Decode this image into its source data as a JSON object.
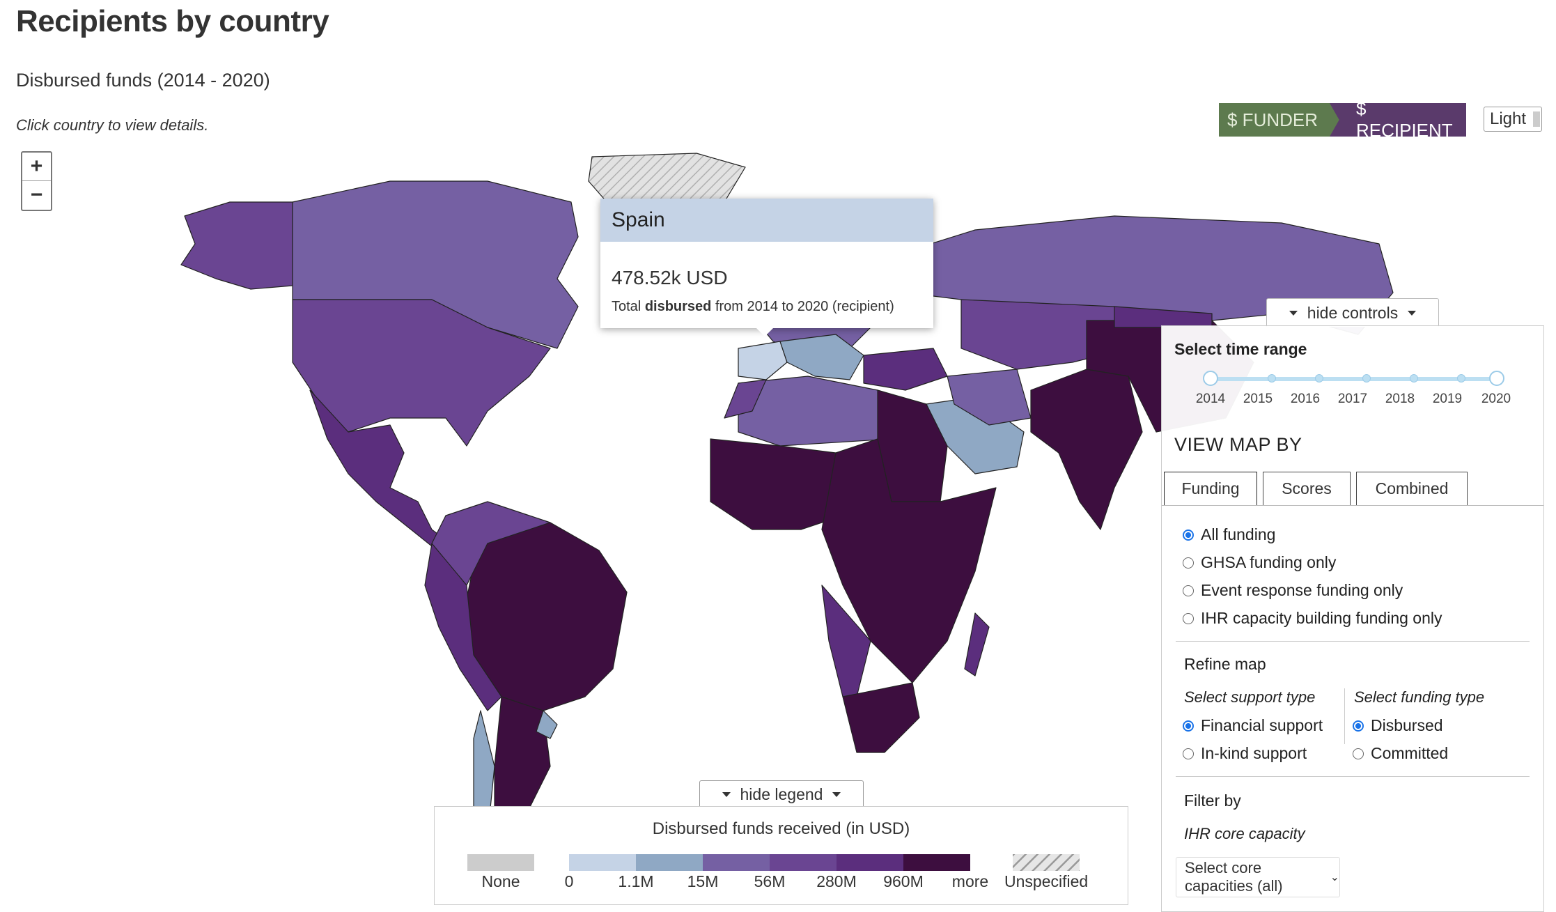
{
  "page": {
    "title": "Recipients by country",
    "subtitle": "Disbursed funds (2014 - 2020)",
    "hint": "Click country to view details."
  },
  "zoom": {
    "in_label": "+",
    "out_label": "−"
  },
  "mode_toggle": {
    "funder_label": "$ FUNDER",
    "recipient_label": "$ RECIPIENT",
    "active": "recipient"
  },
  "theme_toggle": {
    "label": "Light"
  },
  "tooltip": {
    "country": "Spain",
    "value": "478.52k USD",
    "desc_prefix": "Total ",
    "desc_bold": "disbursed",
    "desc_suffix": " from 2014 to 2020 (recipient)"
  },
  "controls": {
    "hide_label": "hide controls",
    "time_range_title": "Select time range",
    "years": [
      "2014",
      "2015",
      "2016",
      "2017",
      "2018",
      "2019",
      "2020"
    ],
    "selected_range": [
      "2014",
      "2020"
    ],
    "view_map_by_title": "VIEW MAP BY",
    "tabs": [
      "Funding",
      "Scores",
      "Combined"
    ],
    "active_tab": "Funding",
    "funding_options": [
      {
        "label": "All funding",
        "checked": true
      },
      {
        "label": "GHSA funding only",
        "checked": false
      },
      {
        "label": "Event response funding only",
        "checked": false
      },
      {
        "label": "IHR capacity building funding only",
        "checked": false
      }
    ],
    "refine_title": "Refine map",
    "support_type_title": "Select support type",
    "support_options": [
      {
        "label": "Financial support",
        "checked": true
      },
      {
        "label": "In-kind support",
        "checked": false
      }
    ],
    "funding_type_title": "Select funding type",
    "funding_type_options": [
      {
        "label": "Disbursed",
        "checked": true
      },
      {
        "label": "Committed",
        "checked": false
      }
    ],
    "filter_title": "Filter by",
    "ihr_title": "IHR core capacity",
    "core_select_value": "Select core capacities (all)"
  },
  "legend": {
    "hide_label": "hide legend",
    "title": "Disbursed funds received (in USD)",
    "none_label": "None",
    "unspecified_label": "Unspecified",
    "bins": [
      "0",
      "1.1M",
      "15M",
      "56M",
      "280M",
      "960M",
      "more"
    ],
    "colors": [
      "#c5d3e6",
      "#8fa8c4",
      "#7560a3",
      "#6a4592",
      "#5b2e7d",
      "#3d0e3f"
    ],
    "none_color": "#cccccc"
  }
}
